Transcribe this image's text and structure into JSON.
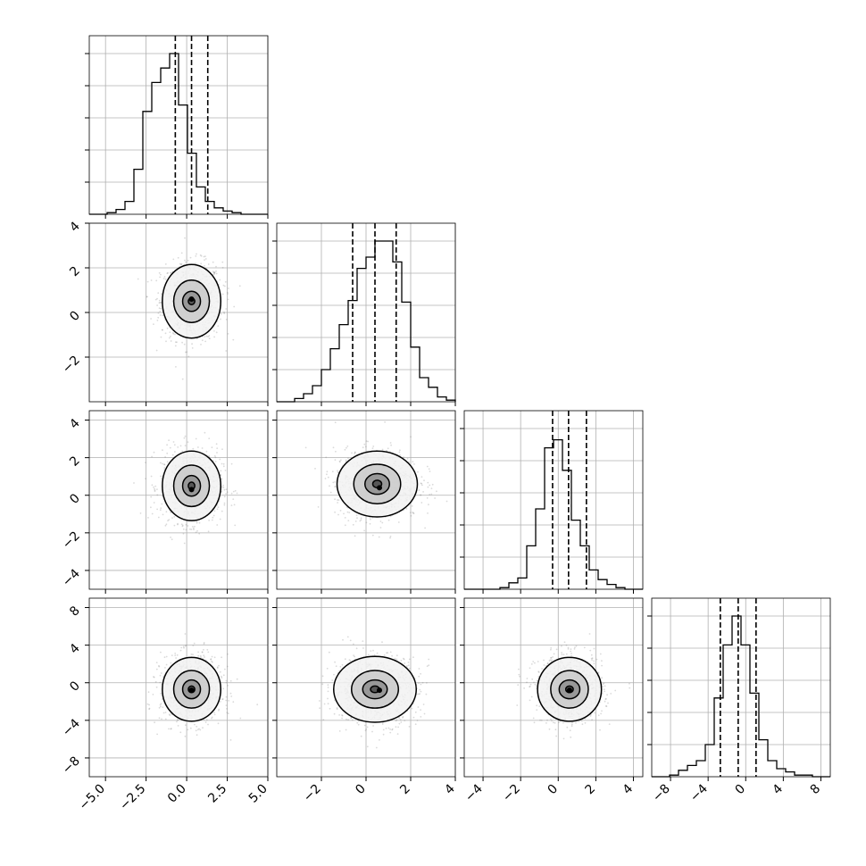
{
  "chart_data": {
    "type": "corner",
    "params": [
      {
        "range": [
          -6,
          5
        ],
        "ticks": [
          -5.0,
          -2.5,
          0.0,
          2.5,
          5.0
        ],
        "tick_labels": [
          "−5.0",
          "−2.5",
          "0.0",
          "2.5",
          "5.0"
        ],
        "quantiles": [
          -0.7,
          0.3,
          1.3
        ],
        "hist": [
          0,
          0,
          0.01,
          0.03,
          0.08,
          0.28,
          0.64,
          0.82,
          0.91,
          1.0,
          0.68,
          0.38,
          0.17,
          0.08,
          0.04,
          0.02,
          0.01,
          0,
          0,
          0
        ]
      },
      {
        "range": [
          -4,
          4
        ],
        "ticks": [
          -2,
          0,
          2,
          4
        ],
        "tick_labels": [
          "−2",
          "0",
          "2",
          "4"
        ],
        "quantiles": [
          -0.6,
          0.4,
          1.35
        ],
        "hist": [
          0,
          0,
          0.02,
          0.05,
          0.1,
          0.2,
          0.33,
          0.48,
          0.63,
          0.83,
          0.9,
          1.0,
          1.0,
          0.87,
          0.62,
          0.34,
          0.15,
          0.09,
          0.03,
          0.01
        ]
      },
      {
        "range": [
          -5,
          4.5
        ],
        "ticks": [
          -4,
          -2,
          0,
          2,
          4
        ],
        "tick_labels": [
          "−4",
          "−2",
          "0",
          "2",
          "4"
        ],
        "quantiles": [
          -0.3,
          0.55,
          1.5
        ],
        "hist": [
          0,
          0,
          0,
          0,
          0.01,
          0.04,
          0.07,
          0.27,
          0.5,
          0.88,
          0.93,
          0.74,
          0.43,
          0.27,
          0.12,
          0.06,
          0.03,
          0.01,
          0,
          0
        ]
      },
      {
        "range": [
          -10,
          9
        ],
        "ticks": [
          -8,
          -4,
          0,
          4,
          8
        ],
        "tick_labels": [
          "−8",
          "−4",
          "0",
          "4",
          "8"
        ],
        "quantiles": [
          -2.7,
          -0.8,
          1.1
        ],
        "hist": [
          0,
          0,
          0.01,
          0.04,
          0.07,
          0.1,
          0.2,
          0.49,
          0.82,
          1.0,
          0.82,
          0.52,
          0.23,
          0.1,
          0.05,
          0.03,
          0.01,
          0.01,
          0,
          0
        ]
      }
    ],
    "pairs": [
      {
        "row": 1,
        "col": 0,
        "center": [
          0.3,
          0.5
        ],
        "peak": [
          0.3,
          0.6
        ],
        "contours": [
          [
            0.2,
            0.15
          ],
          [
            0.55,
            0.45
          ],
          [
            1.1,
            0.95
          ],
          [
            1.8,
            1.65
          ]
        ]
      },
      {
        "row": 2,
        "col": 0,
        "center": [
          0.3,
          0.5
        ],
        "peak": [
          0.3,
          0.3
        ],
        "contours": [
          [
            0.2,
            0.2
          ],
          [
            0.55,
            0.55
          ],
          [
            1.1,
            1.1
          ],
          [
            1.8,
            1.85
          ]
        ]
      },
      {
        "row": 2,
        "col": 1,
        "center": [
          0.5,
          0.6
        ],
        "peak": [
          0.6,
          0.4
        ],
        "contours": [
          [
            0.2,
            0.2
          ],
          [
            0.55,
            0.55
          ],
          [
            1.05,
            1.05
          ],
          [
            1.8,
            1.75
          ]
        ]
      },
      {
        "row": 3,
        "col": 0,
        "center": [
          0.3,
          -0.7
        ],
        "peak": [
          0.3,
          -0.8
        ],
        "contours": [
          [
            0.2,
            0.35
          ],
          [
            0.55,
            1.0
          ],
          [
            1.1,
            2.0
          ],
          [
            1.8,
            3.4
          ]
        ]
      },
      {
        "row": 3,
        "col": 1,
        "center": [
          0.4,
          -0.7
        ],
        "peak": [
          0.6,
          -0.8
        ],
        "contours": [
          [
            0.2,
            0.35
          ],
          [
            0.55,
            1.0
          ],
          [
            1.05,
            2.0
          ],
          [
            1.85,
            3.5
          ]
        ]
      },
      {
        "row": 3,
        "col": 2,
        "center": [
          0.6,
          -0.7
        ],
        "peak": [
          0.6,
          -0.8
        ],
        "contours": [
          [
            0.2,
            0.35
          ],
          [
            0.55,
            1.0
          ],
          [
            1.0,
            2.0
          ],
          [
            1.7,
            3.4
          ]
        ]
      }
    ]
  }
}
